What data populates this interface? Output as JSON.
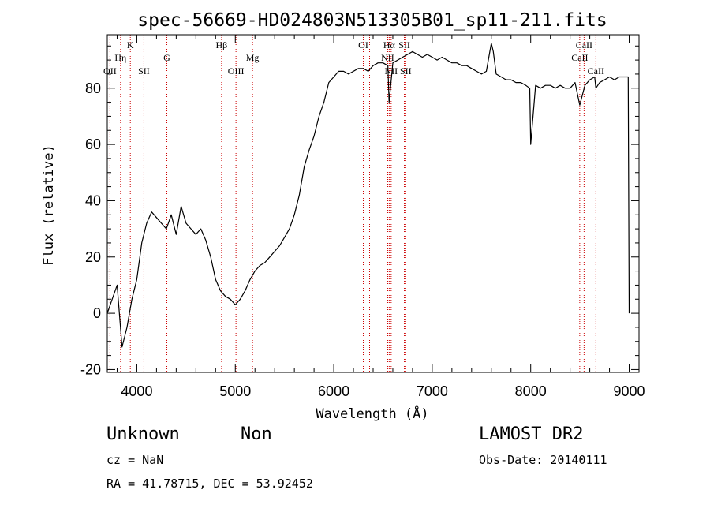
{
  "chart_data": {
    "type": "line",
    "title": "spec-56669-HD024803N513305B01_sp11-211.fits",
    "xlabel": "Wavelength (Å)",
    "ylabel": "Flux (relative)",
    "xlim": [
      3700,
      9100
    ],
    "ylim": [
      -21,
      99
    ],
    "xticks": [
      4000,
      5000,
      6000,
      7000,
      8000,
      9000
    ],
    "yticks": [
      -20,
      0,
      20,
      40,
      60,
      80
    ],
    "grid": false,
    "series": [
      {
        "color": "#000000",
        "x": [
          3700,
          3750,
          3800,
          3850,
          3900,
          3950,
          4000,
          4050,
          4100,
          4150,
          4200,
          4250,
          4300,
          4350,
          4400,
          4450,
          4500,
          4550,
          4600,
          4650,
          4700,
          4750,
          4800,
          4850,
          4900,
          4950,
          5000,
          5050,
          5100,
          5150,
          5200,
          5250,
          5300,
          5350,
          5400,
          5450,
          5500,
          5550,
          5600,
          5650,
          5700,
          5750,
          5800,
          5850,
          5900,
          5950,
          6000,
          6050,
          6100,
          6150,
          6200,
          6250,
          6300,
          6350,
          6400,
          6450,
          6500,
          6550,
          6562,
          6600,
          6650,
          6700,
          6750,
          6800,
          6850,
          6900,
          6950,
          7000,
          7050,
          7100,
          7150,
          7200,
          7250,
          7300,
          7350,
          7400,
          7450,
          7500,
          7550,
          7600,
          7620,
          7650,
          7700,
          7750,
          7800,
          7850,
          7900,
          7950,
          7990,
          8000,
          8050,
          8100,
          8150,
          8200,
          8250,
          8300,
          8350,
          8400,
          8450,
          8498,
          8550,
          8600,
          8650,
          8662,
          8700,
          8750,
          8800,
          8850,
          8900,
          8950,
          8990,
          9000
        ],
        "y": [
          0,
          5,
          10,
          -12,
          -5,
          5,
          12,
          25,
          32,
          36,
          34,
          32,
          30,
          35,
          28,
          38,
          32,
          30,
          28,
          30,
          26,
          20,
          12,
          8,
          6,
          5,
          3,
          5,
          8,
          12,
          15,
          17,
          18,
          20,
          22,
          24,
          27,
          30,
          35,
          42,
          52,
          58,
          63,
          70,
          75,
          82,
          84,
          86,
          86,
          85,
          86,
          87,
          87,
          86,
          88,
          89,
          89,
          88,
          75,
          89,
          90,
          91,
          92,
          93,
          92,
          91,
          92,
          91,
          90,
          91,
          90,
          89,
          89,
          88,
          88,
          87,
          86,
          85,
          86,
          96,
          93,
          85,
          84,
          83,
          83,
          82,
          82,
          81,
          80,
          60,
          81,
          80,
          81,
          81,
          80,
          81,
          80,
          80,
          82,
          74,
          81,
          83,
          84,
          80,
          82,
          83,
          84,
          83,
          84,
          84,
          84,
          0
        ]
      }
    ],
    "line_markers": [
      {
        "label": "OII",
        "wavelength": 3727,
        "row": 3
      },
      {
        "label": "Hη",
        "wavelength": 3835,
        "row": 2
      },
      {
        "label": "K",
        "wavelength": 3934,
        "row": 1
      },
      {
        "label": "SII",
        "wavelength": 4072,
        "row": 3
      },
      {
        "label": "G",
        "wavelength": 4305,
        "row": 2
      },
      {
        "label": "Hβ",
        "wavelength": 4861,
        "row": 1
      },
      {
        "label": "OIII",
        "wavelength": 5007,
        "row": 3
      },
      {
        "label": "Mg",
        "wavelength": 5175,
        "row": 2
      },
      {
        "label": "OI",
        "wavelength": 6300,
        "row": 1
      },
      {
        "label": "",
        "wavelength": 6364,
        "row": 0
      },
      {
        "label": "Hα",
        "wavelength": 6563,
        "row": 1
      },
      {
        "label": "NII",
        "wavelength": 6548,
        "row": 2
      },
      {
        "label": "NII",
        "wavelength": 6583,
        "row": 3
      },
      {
        "label": "SII",
        "wavelength": 6717,
        "row": 1
      },
      {
        "label": "SII",
        "wavelength": 6731,
        "row": 3
      },
      {
        "label": "CaII",
        "wavelength": 8498,
        "row": 2
      },
      {
        "label": "CaII",
        "wavelength": 8542,
        "row": 1
      },
      {
        "label": "CaII",
        "wavelength": 8662,
        "row": 3
      }
    ]
  },
  "info": {
    "class_label": "Unknown",
    "subclass_label": "Non",
    "survey": "LAMOST DR2",
    "cz": "cz = NaN",
    "obs_date": "Obs-Date: 20140111",
    "coords": "RA =  41.78715, DEC =  53.92452"
  }
}
